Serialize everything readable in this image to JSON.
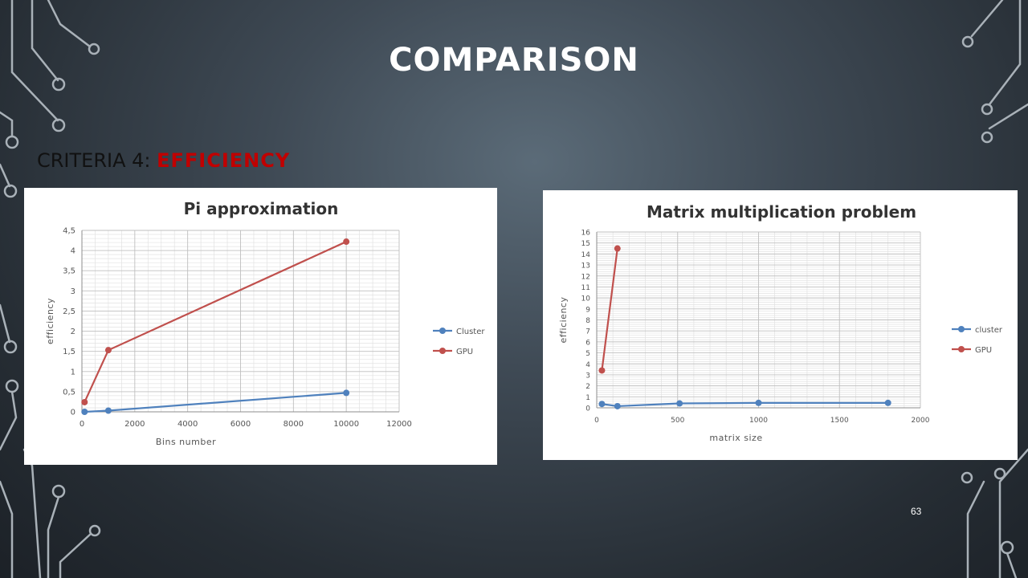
{
  "slide": {
    "title": "COMPARISON",
    "subtitle_prefix": "CRITERIA 4: ",
    "subtitle_highlight": "EFFICIENCY",
    "page_number": "63",
    "accent_color": "#c00000"
  },
  "chart_data": [
    {
      "type": "line",
      "title": "Pi approximation",
      "xlabel": "Bins number",
      "ylabel": "efficiency",
      "xlim": [
        0,
        12000
      ],
      "ylim": [
        0,
        4.5
      ],
      "xticks": [
        0,
        2000,
        4000,
        6000,
        8000,
        10000,
        12000
      ],
      "xtick_labels": [
        "0",
        "2000",
        "4000",
        "6000",
        "8000",
        "10000",
        "12000"
      ],
      "yticks": [
        0,
        0.5,
        1,
        1.5,
        2,
        2.5,
        3,
        3.5,
        4,
        4.5
      ],
      "ytick_labels": [
        "0",
        "0,5",
        "1",
        "1,5",
        "2",
        "2,5",
        "3",
        "3,5",
        "4",
        "4,5"
      ],
      "grid": true,
      "legend_position": "right",
      "series": [
        {
          "name": "Cluster",
          "color": "#4f81bd",
          "x": [
            100,
            1000,
            10000
          ],
          "y": [
            0.0,
            0.03,
            0.47
          ]
        },
        {
          "name": "GPU",
          "color": "#c0504d",
          "x": [
            100,
            1000,
            10000
          ],
          "y": [
            0.24,
            1.53,
            4.22
          ]
        }
      ]
    },
    {
      "type": "line",
      "title": "Matrix multiplication problem",
      "xlabel": "matrix size",
      "ylabel": "efficiency",
      "xlim": [
        0,
        2000
      ],
      "ylim": [
        0,
        16
      ],
      "xticks": [
        0,
        500,
        1000,
        1500,
        2000
      ],
      "xtick_labels": [
        "0",
        "500",
        "1000",
        "1500",
        "2000"
      ],
      "yticks": [
        0,
        1,
        2,
        3,
        4,
        5,
        6,
        7,
        8,
        9,
        10,
        11,
        12,
        13,
        14,
        15,
        16
      ],
      "ytick_labels": [
        "0",
        "1",
        "2",
        "3",
        "4",
        "5",
        "6",
        "7",
        "8",
        "9",
        "10",
        "11",
        "12",
        "13",
        "14",
        "15",
        "16"
      ],
      "grid": true,
      "legend_position": "right",
      "series": [
        {
          "name": "cluster",
          "color": "#4f81bd",
          "x": [
            32,
            128,
            512,
            1000,
            1800
          ],
          "y": [
            0.35,
            0.15,
            0.4,
            0.45,
            0.45
          ]
        },
        {
          "name": "GPU",
          "color": "#c0504d",
          "x": [
            32,
            128
          ],
          "y": [
            3.4,
            14.5
          ]
        }
      ]
    }
  ]
}
